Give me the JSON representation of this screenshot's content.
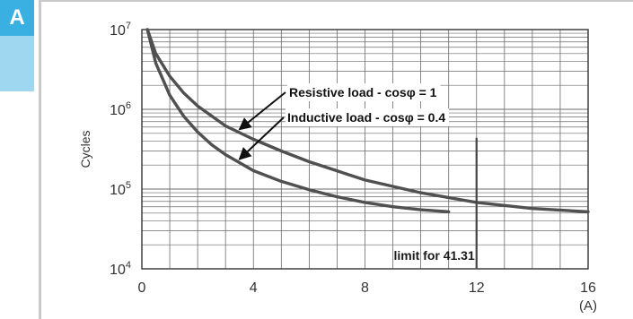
{
  "section": {
    "letter": "A",
    "color": "#3ab0e2",
    "color_light": "#9fd6f0"
  },
  "chart_data": {
    "type": "line",
    "scale": {
      "x": "linear",
      "y": "log"
    },
    "xlim": [
      0,
      16
    ],
    "ylim": [
      10000,
      10000000
    ],
    "grid": true,
    "ylabel": "Cycles",
    "xunit": "(A)",
    "x_ticks": [
      "0",
      "4",
      "8",
      "12",
      "16"
    ],
    "y_ticks": [
      {
        "base": "10",
        "exp": "4"
      },
      {
        "base": "10",
        "exp": "5"
      },
      {
        "base": "10",
        "exp": "6"
      },
      {
        "base": "10",
        "exp": "7"
      }
    ],
    "series": [
      {
        "name": "Resistive load - cosφ = 1",
        "color": "#505050",
        "x": [
          0.2,
          0.5,
          1,
          1.5,
          2,
          3,
          4,
          5,
          6,
          8,
          10,
          12,
          14,
          16
        ],
        "y": [
          10000000,
          5000000,
          2600000,
          1600000,
          1100000,
          620000,
          420000,
          300000,
          220000,
          130000,
          90000,
          68000,
          57000,
          52000
        ]
      },
      {
        "name": "Inductive load - cosφ = 0.4",
        "color": "#505050",
        "x": [
          0.2,
          0.5,
          1,
          1.5,
          2,
          2.5,
          3,
          4,
          5,
          6,
          7,
          8,
          9,
          10,
          11
        ],
        "y": [
          10000000,
          3800000,
          1500000,
          820000,
          520000,
          360000,
          270000,
          170000,
          125000,
          98000,
          80000,
          68000,
          60000,
          55000,
          52000
        ]
      }
    ],
    "limit": {
      "x": 12,
      "y_top": 440000,
      "label": "limit for 41.31"
    },
    "annotations": [
      {
        "text": "Resistive load - cosφ = 1",
        "target_series": 0,
        "target_x": 3.4
      },
      {
        "text": "Inductive load - cosφ = 0.4",
        "target_series": 1,
        "target_x": 3.4
      }
    ]
  }
}
